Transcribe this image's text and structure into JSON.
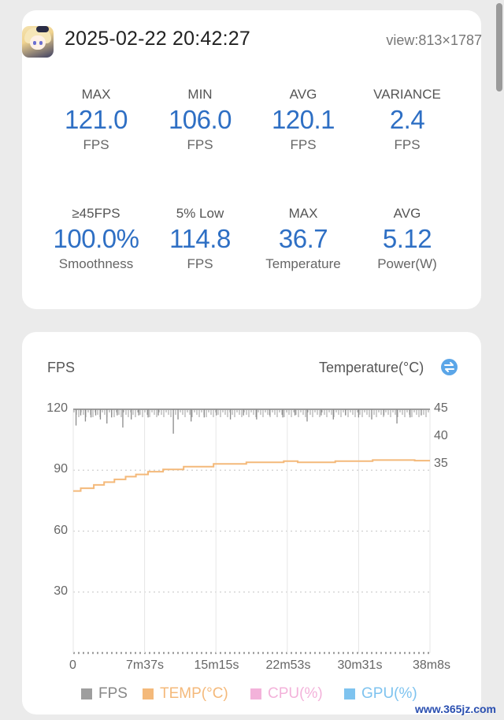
{
  "session": {
    "datetime": "2025-02-22 20:42:27",
    "view": "view:813×1787"
  },
  "stats": [
    {
      "label": "MAX",
      "value": "121.0",
      "unit": "FPS"
    },
    {
      "label": "MIN",
      "value": "106.0",
      "unit": "FPS"
    },
    {
      "label": "AVG",
      "value": "120.1",
      "unit": "FPS"
    },
    {
      "label": "VARIANCE",
      "value": "2.4",
      "unit": "FPS"
    },
    {
      "label": "≥45FPS",
      "value": "100.0%",
      "unit": "Smoothness"
    },
    {
      "label": "5% Low",
      "value": "114.8",
      "unit": "FPS"
    },
    {
      "label": "MAX",
      "value": "36.7",
      "unit": "Temperature"
    },
    {
      "label": "AVG",
      "value": "5.12",
      "unit": "Power(W)"
    }
  ],
  "chart_data": {
    "type": "line",
    "left_axis_title": "FPS",
    "right_axis_title": "Temperature(°C)",
    "x_ticks": [
      "0",
      "7m37s",
      "15m15s",
      "22m53s",
      "30m31s",
      "38m8s"
    ],
    "y_ticks": [
      "120",
      "90",
      "60",
      "30"
    ],
    "y_right_ticks": [
      "45",
      "40",
      "35"
    ],
    "ylim": [
      0,
      120
    ],
    "ylim_right": [
      25,
      45
    ],
    "x_minutes_max": 38.13,
    "series": [
      {
        "name": "FPS",
        "color": "#9e9e9e",
        "baseline": 120,
        "dips": [
          [
            0.3,
            112
          ],
          [
            0.8,
            117
          ],
          [
            1.3,
            114
          ],
          [
            1.9,
            116
          ],
          [
            2.4,
            117
          ],
          [
            2.9,
            115
          ],
          [
            3.6,
            113
          ],
          [
            4.1,
            116
          ],
          [
            4.7,
            117
          ],
          [
            5.3,
            111
          ],
          [
            6.2,
            115
          ],
          [
            7.0,
            117
          ],
          [
            8.0,
            116
          ],
          [
            9.1,
            117
          ],
          [
            10.7,
            108
          ],
          [
            11.2,
            115
          ],
          [
            12.6,
            114
          ],
          [
            14.0,
            116
          ],
          [
            15.3,
            117
          ],
          [
            16.8,
            115
          ],
          [
            18.2,
            117
          ],
          [
            19.6,
            115
          ],
          [
            21.0,
            117
          ],
          [
            22.4,
            116
          ],
          [
            23.7,
            117
          ],
          [
            25.0,
            114
          ],
          [
            26.5,
            117
          ],
          [
            27.8,
            115
          ],
          [
            29.1,
            117
          ],
          [
            30.5,
            116
          ],
          [
            31.9,
            115
          ],
          [
            33.2,
            117
          ],
          [
            34.6,
            113
          ],
          [
            36.0,
            116
          ],
          [
            37.2,
            117
          ]
        ]
      },
      {
        "name": "TEMP(°C)",
        "color": "#f4b97a",
        "points": [
          [
            0,
            30.2
          ],
          [
            0.8,
            30.2
          ],
          [
            0.8,
            30.7
          ],
          [
            2.2,
            30.7
          ],
          [
            2.2,
            31.3
          ],
          [
            3.3,
            31.3
          ],
          [
            3.3,
            31.8
          ],
          [
            4.4,
            31.8
          ],
          [
            4.4,
            32.3
          ],
          [
            5.6,
            32.3
          ],
          [
            5.6,
            32.8
          ],
          [
            6.7,
            32.8
          ],
          [
            6.7,
            33.2
          ],
          [
            8.0,
            33.2
          ],
          [
            8.0,
            33.7
          ],
          [
            9.6,
            33.7
          ],
          [
            9.6,
            34.1
          ],
          [
            11.8,
            34.1
          ],
          [
            11.8,
            34.6
          ],
          [
            15.0,
            34.6
          ],
          [
            15.0,
            35.1
          ],
          [
            18.5,
            35.1
          ],
          [
            18.5,
            35.4
          ],
          [
            22.5,
            35.4
          ],
          [
            22.5,
            35.6
          ],
          [
            24.0,
            35.6
          ],
          [
            24.0,
            35.4
          ],
          [
            28.0,
            35.4
          ],
          [
            28.0,
            35.6
          ],
          [
            32.0,
            35.6
          ],
          [
            32.0,
            35.8
          ],
          [
            36.5,
            35.8
          ],
          [
            36.5,
            35.7
          ],
          [
            38.13,
            35.7
          ]
        ]
      },
      {
        "name": "CPU(%)",
        "color": "#f3b2da"
      },
      {
        "name": "GPU(%)",
        "color": "#7ec3ef"
      }
    ]
  },
  "watermark": "www.365jz.com"
}
